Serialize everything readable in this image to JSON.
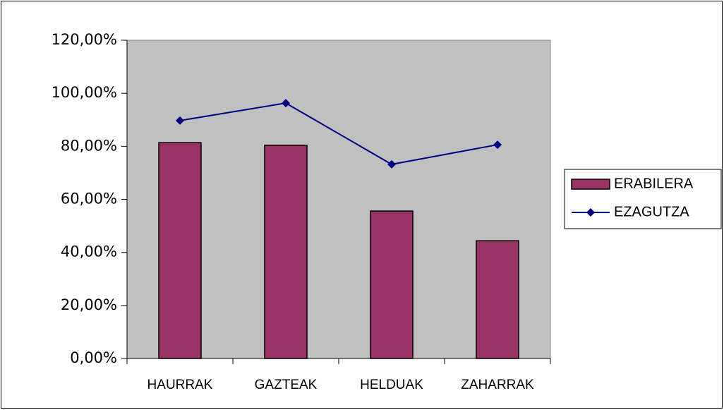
{
  "chart_data": {
    "type": "bar",
    "categories": [
      "HAURRAK",
      "GAZTEAK",
      "HELDUAK",
      "ZAHARRAK"
    ],
    "series": [
      {
        "name": "ERABILERA",
        "type": "bar",
        "color": "#993366",
        "values": [
          81.4,
          80.4,
          55.6,
          44.4
        ]
      },
      {
        "name": "EZAGUTZA",
        "type": "line",
        "color": "#000080",
        "values": [
          89.7,
          96.3,
          73.2,
          80.6
        ]
      }
    ],
    "ylim": [
      0,
      120
    ],
    "yticks": [
      {
        "value": 0,
        "label": "0,00%"
      },
      {
        "value": 20,
        "label": "20,00%"
      },
      {
        "value": 40,
        "label": "40,00%"
      },
      {
        "value": 60,
        "label": "60,00%"
      },
      {
        "value": 80,
        "label": "80,00%"
      },
      {
        "value": 100,
        "label": "100,00%"
      },
      {
        "value": 120,
        "label": "120,00%"
      }
    ],
    "plot_background": "#c0c0c0",
    "legend": "right"
  }
}
